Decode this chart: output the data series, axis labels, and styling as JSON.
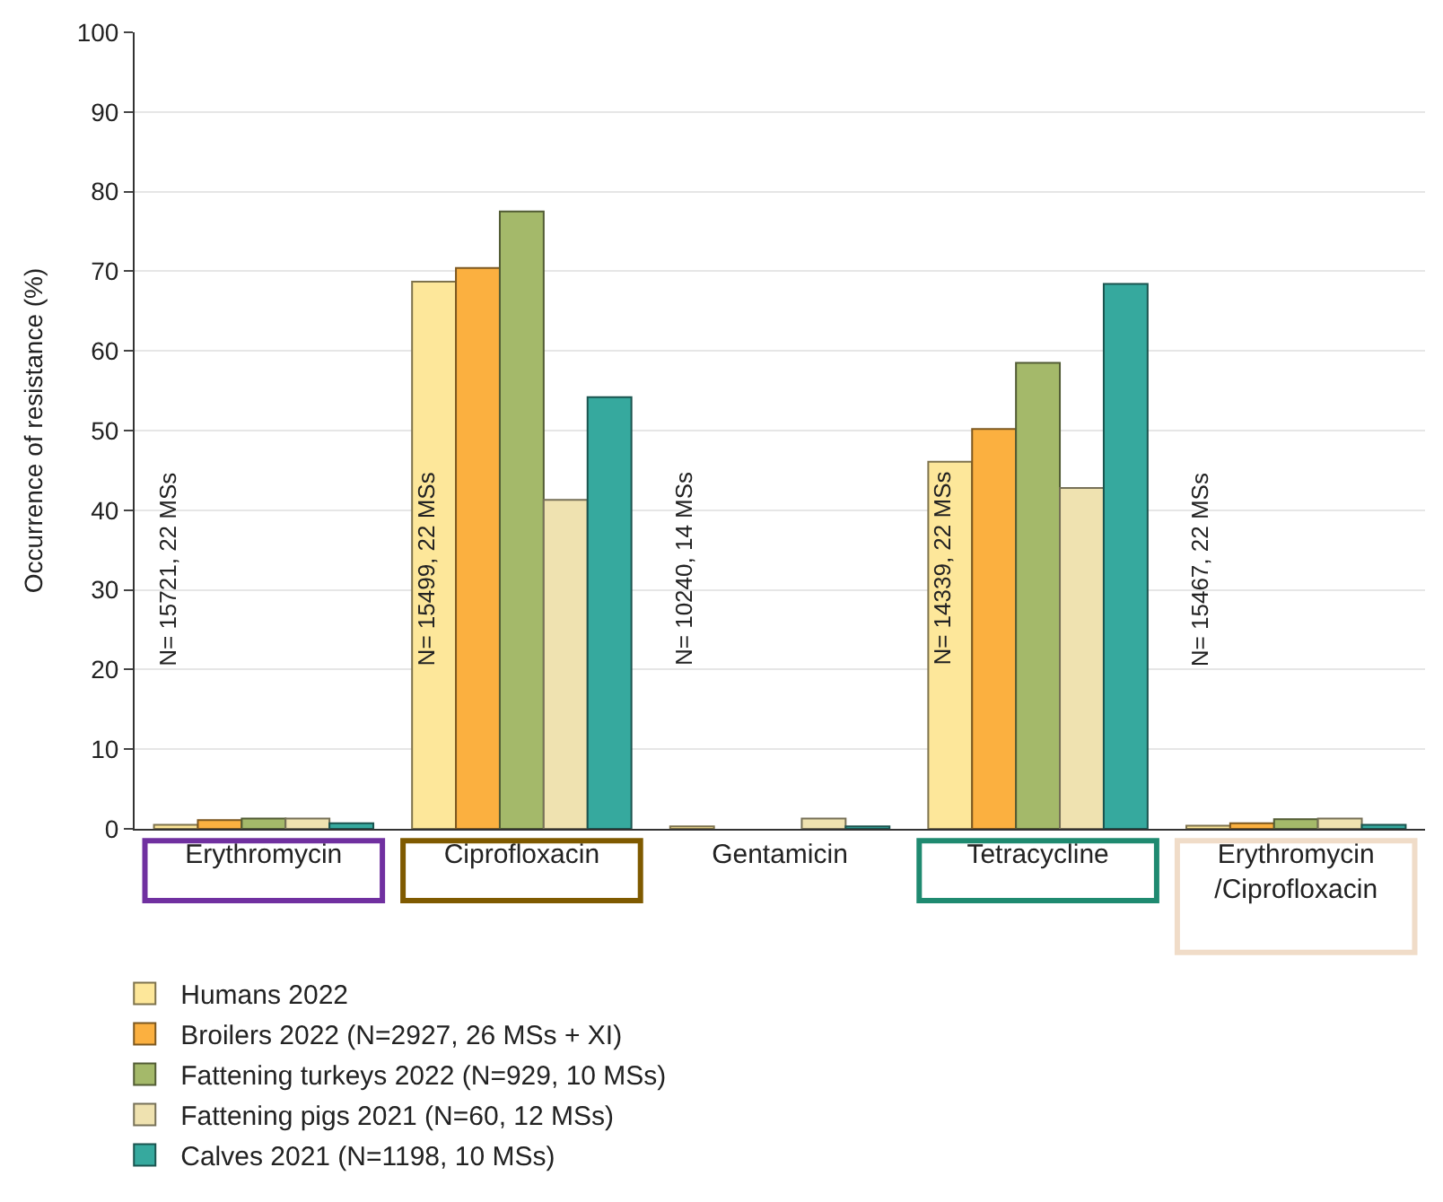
{
  "chart_data": {
    "type": "bar",
    "ylabel": "Occurrence of resistance (%)",
    "categories": [
      "Erythromycin",
      "Ciprofloxacin",
      "Gentamicin",
      "Tetracycline",
      "Erythromycin /Ciprofloxacin"
    ],
    "series": [
      {
        "name": "Humans 2022",
        "color": "#fde79a",
        "values": [
          0.5,
          68.7,
          0.3,
          46.1,
          0.4
        ]
      },
      {
        "name": "Broilers 2022 (N=2927, 26 MSs + XI)",
        "color": "#fbb040",
        "values": [
          1.1,
          70.4,
          null,
          50.2,
          0.7
        ]
      },
      {
        "name": "Fattening turkeys 2022 (N=929, 10 MSs)",
        "color": "#a4b96a",
        "values": [
          1.3,
          77.5,
          null,
          58.5,
          1.2
        ]
      },
      {
        "name": "Fattening pigs 2021 (N=60, 12 MSs)",
        "color": "#efe2b0",
        "values": [
          1.3,
          41.3,
          1.3,
          42.8,
          1.3
        ]
      },
      {
        "name": "Calves 2021 (N=1198, 10 MSs)",
        "color": "#36a99e",
        "values": [
          0.7,
          54.2,
          0.3,
          68.4,
          0.5
        ]
      }
    ],
    "ylim": [
      0,
      100
    ],
    "yticks": [
      0,
      10,
      20,
      30,
      40,
      50,
      60,
      70,
      80,
      90,
      100
    ],
    "grid": "y",
    "legend": "bottom",
    "annotations": [
      "N= 15721, 22 MSs",
      "N= 15499, 22 MSs",
      "N= 10240, 14 MSs",
      "N= 14339, 22 MSs",
      "N= 15467, 22 MSs"
    ]
  }
}
